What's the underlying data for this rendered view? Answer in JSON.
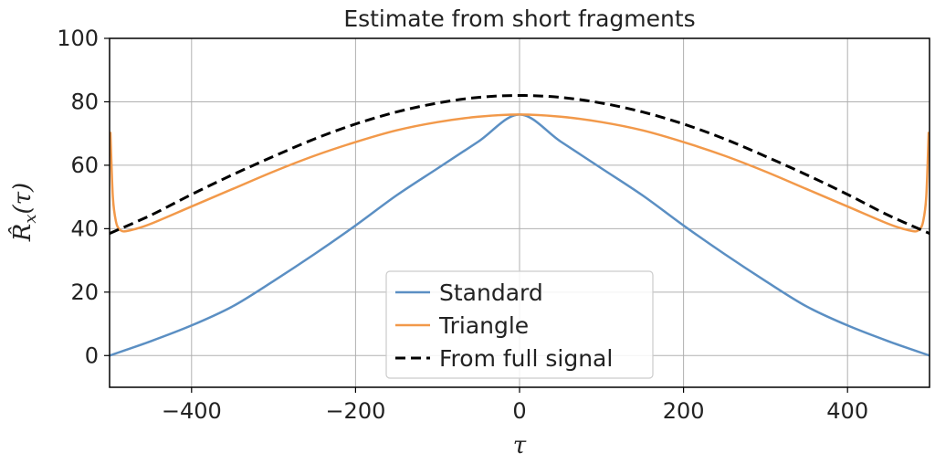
{
  "chart_data": {
    "type": "line",
    "title": "Estimate from short fragments",
    "xlabel": "τ",
    "ylabel": "R̂x(τ)",
    "ylabel_parts": {
      "base": "R̂",
      "sub": "x",
      "arg": "(τ)"
    },
    "xlim": [
      -500,
      500
    ],
    "ylim": [
      -10,
      100
    ],
    "xticks": [
      -400,
      -200,
      0,
      200,
      400
    ],
    "xtick_labels": [
      "−400",
      "−200",
      "0",
      "200",
      "400"
    ],
    "yticks": [
      0,
      20,
      40,
      60,
      80,
      100
    ],
    "ytick_labels": [
      "0",
      "20",
      "40",
      "60",
      "80",
      "100"
    ],
    "grid": true,
    "legend_position": "lower-center",
    "series": [
      {
        "name": "Standard",
        "color": "#5b8fc3",
        "style": "solid",
        "x": [
          -500,
          -450,
          -400,
          -350,
          -300,
          -250,
          -200,
          -150,
          -100,
          -50,
          0,
          50,
          100,
          150,
          200,
          250,
          300,
          350,
          400,
          450,
          500
        ],
        "y": [
          0,
          4.5,
          9.5,
          15.5,
          23.5,
          32,
          41,
          50.5,
          59,
          67.5,
          76,
          67.5,
          59,
          50.5,
          41,
          32,
          23.5,
          15.5,
          9.5,
          4.5,
          0
        ]
      },
      {
        "name": "Triangle",
        "color": "#f2994a",
        "style": "solid",
        "x": [
          -499,
          -496,
          -492,
          -488,
          -484,
          -480,
          -470,
          -450,
          -400,
          -350,
          -300,
          -250,
          -200,
          -150,
          -100,
          -50,
          0,
          50,
          100,
          150,
          200,
          250,
          300,
          350,
          400,
          450,
          470,
          480,
          484,
          488,
          492,
          496,
          499
        ],
        "y": [
          70.5,
          50,
          42,
          39.8,
          39.2,
          39.2,
          39.8,
          41.5,
          47,
          52.5,
          58,
          63,
          67.3,
          71,
          73.6,
          75.3,
          76,
          75.3,
          73.6,
          71,
          67.3,
          63,
          58,
          52.5,
          47,
          41.5,
          39.8,
          39.2,
          39.2,
          39.8,
          42,
          50,
          70.5
        ]
      },
      {
        "name": "From full signal",
        "color": "#000000",
        "style": "dashed",
        "x": [
          -500,
          -450,
          -400,
          -350,
          -300,
          -250,
          -200,
          -150,
          -100,
          -50,
          0,
          50,
          100,
          150,
          200,
          250,
          300,
          350,
          400,
          450,
          500
        ],
        "y": [
          38.5,
          44.2,
          50.8,
          57,
          62.8,
          68.3,
          73,
          76.8,
          79.6,
          81.4,
          82,
          81.4,
          79.6,
          76.8,
          73,
          68.3,
          62.8,
          57,
          50.8,
          44.2,
          38.5
        ]
      }
    ]
  }
}
